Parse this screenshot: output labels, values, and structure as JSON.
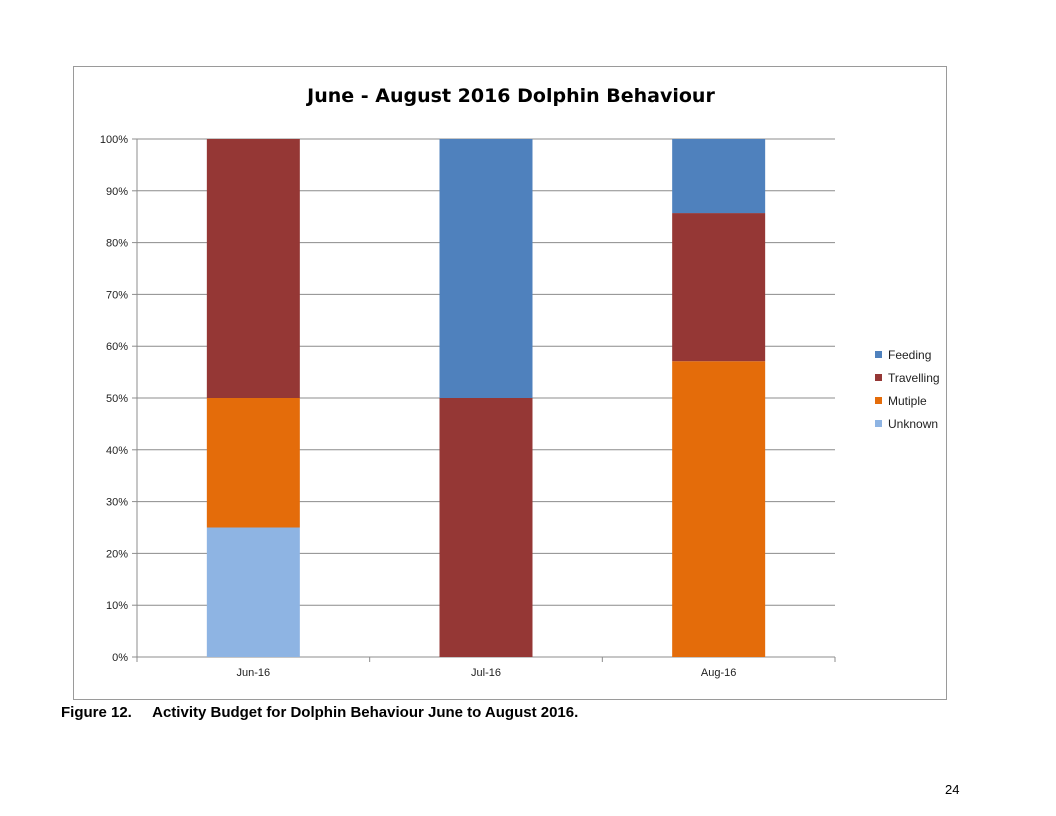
{
  "chart_data": {
    "type": "bar",
    "stacked": true,
    "percent": true,
    "title": "June - August 2016 Dolphin Behaviour",
    "categories": [
      "Jun-16",
      "Jul-16",
      "Aug-16"
    ],
    "series": [
      {
        "name": "Unknown",
        "color": "#8eb4e3",
        "values": [
          25,
          0,
          0
        ]
      },
      {
        "name": "Mutiple",
        "color": "#e46c0a",
        "values": [
          25,
          0,
          57.1
        ]
      },
      {
        "name": "Travelling",
        "color": "#953735",
        "values": [
          50,
          50,
          28.6
        ]
      },
      {
        "name": "Feeding",
        "color": "#4f81bd",
        "values": [
          0,
          50,
          14.3
        ]
      }
    ],
    "ylim": [
      0,
      100
    ],
    "yticks": [
      "0%",
      "10%",
      "20%",
      "30%",
      "40%",
      "50%",
      "60%",
      "70%",
      "80%",
      "90%",
      "100%"
    ],
    "grid": true,
    "legend_position": "right",
    "legend_order": [
      "Feeding",
      "Travelling",
      "Mutiple",
      "Unknown"
    ]
  },
  "legend": [
    {
      "label": "Feeding",
      "color": "#4f81bd"
    },
    {
      "label": "Travelling",
      "color": "#953735"
    },
    {
      "label": "Mutiple",
      "color": "#e46c0a"
    },
    {
      "label": "Unknown",
      "color": "#8eb4e3"
    }
  ],
  "caption": "Figure 12.     Activity Budget for Dolphin Behaviour June to August 2016.",
  "page_number": "24"
}
